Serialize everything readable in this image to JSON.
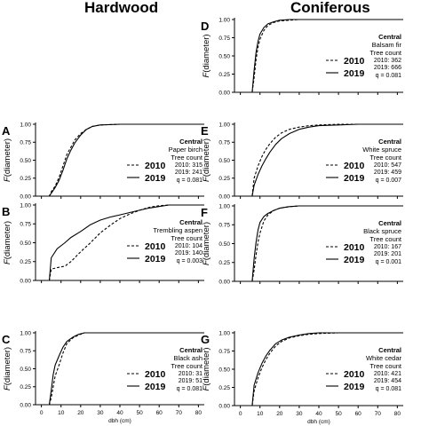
{
  "headers": {
    "left": "Hardwood",
    "right": "Coniferous"
  },
  "axis": {
    "ylabel_html": [
      "F",
      "(diameter)"
    ],
    "yticks": [
      "0.00",
      "0.25",
      "0.50",
      "0.75",
      "1.00"
    ],
    "xticks": [
      "0",
      "10",
      "20",
      "30",
      "40",
      "50",
      "60",
      "70",
      "80"
    ],
    "xlabel": "dbh (cm)",
    "xlim": [
      -3,
      83
    ],
    "ylim": [
      0,
      1
    ]
  },
  "legend": {
    "series_a": "2010",
    "series_b": "2019",
    "count_title": "Tree count"
  },
  "chart_data": [
    {
      "panel": "A",
      "type": "line",
      "region": "Central",
      "species": "Paper birch",
      "counts": [
        "2010: 315",
        "2019: 241"
      ],
      "q": "q = 0.081",
      "series": [
        {
          "name": "2010",
          "dash": true,
          "x": [
            -3,
            2,
            4,
            5,
            7,
            9,
            11,
            13,
            15,
            17,
            20,
            23,
            26,
            30,
            40,
            65,
            83
          ],
          "y": [
            0,
            0,
            0,
            0.06,
            0.14,
            0.26,
            0.42,
            0.58,
            0.68,
            0.78,
            0.87,
            0.93,
            0.97,
            0.99,
            1,
            1,
            1
          ]
        },
        {
          "name": "2019",
          "dash": false,
          "x": [
            -3,
            2,
            4,
            5,
            7,
            9,
            11,
            13,
            15,
            17,
            20,
            23,
            26,
            30,
            40,
            65,
            83
          ],
          "y": [
            0,
            0,
            0,
            0.04,
            0.12,
            0.22,
            0.36,
            0.52,
            0.64,
            0.74,
            0.85,
            0.93,
            0.97,
            0.99,
            1,
            1,
            1
          ]
        }
      ]
    },
    {
      "panel": "B",
      "type": "line",
      "region": "Central",
      "species": "Trembling aspen",
      "counts": [
        "2010: 104",
        "2019: 140"
      ],
      "q": "q = 0.003",
      "series": [
        {
          "name": "2010",
          "dash": true,
          "x": [
            -3,
            3,
            4,
            5,
            8,
            12,
            15,
            20,
            25,
            30,
            35,
            40,
            45,
            50,
            55,
            60,
            65,
            70,
            83
          ],
          "y": [
            0,
            0,
            0,
            0.15,
            0.17,
            0.19,
            0.25,
            0.38,
            0.5,
            0.63,
            0.73,
            0.82,
            0.88,
            0.93,
            0.97,
            0.99,
            1,
            1,
            1
          ]
        },
        {
          "name": "2019",
          "dash": false,
          "x": [
            -3,
            3,
            4,
            5,
            8,
            12,
            15,
            20,
            25,
            30,
            35,
            40,
            45,
            50,
            55,
            60,
            65,
            70,
            83
          ],
          "y": [
            0,
            0,
            0,
            0.3,
            0.42,
            0.5,
            0.57,
            0.65,
            0.74,
            0.8,
            0.84,
            0.87,
            0.9,
            0.93,
            0.96,
            0.98,
            1,
            1,
            1
          ]
        }
      ]
    },
    {
      "panel": "C",
      "type": "line",
      "region": "Central",
      "species": "Black ash",
      "counts": [
        "2010: 31",
        "2019: 51"
      ],
      "q": "q = 0.081",
      "series": [
        {
          "name": "2010",
          "dash": true,
          "x": [
            -3,
            3,
            4,
            5,
            6,
            7,
            9,
            11,
            13,
            16,
            19,
            22,
            83
          ],
          "y": [
            0,
            0,
            0,
            0.1,
            0.25,
            0.4,
            0.55,
            0.72,
            0.85,
            0.93,
            0.97,
            1,
            1
          ]
        },
        {
          "name": "2019",
          "dash": false,
          "x": [
            -3,
            3,
            4,
            5,
            6,
            7,
            9,
            11,
            13,
            16,
            19,
            22,
            83
          ],
          "y": [
            0,
            0,
            0,
            0.2,
            0.42,
            0.55,
            0.68,
            0.8,
            0.88,
            0.94,
            0.98,
            1,
            1
          ]
        }
      ]
    },
    {
      "panel": "D",
      "type": "line",
      "region": "Central",
      "species": "Balsam fir",
      "counts": [
        "2010: 362",
        "2019: 666"
      ],
      "q": "q = 0.081",
      "series": [
        {
          "name": "2010",
          "dash": true,
          "x": [
            -3,
            5,
            6,
            7,
            8,
            9,
            10,
            12,
            14,
            17,
            20,
            25,
            30,
            40,
            83
          ],
          "y": [
            0,
            0,
            0,
            0.2,
            0.45,
            0.62,
            0.73,
            0.85,
            0.92,
            0.96,
            0.98,
            0.99,
            1,
            1,
            1
          ]
        },
        {
          "name": "2019",
          "dash": false,
          "x": [
            -3,
            5,
            6,
            7,
            8,
            9,
            10,
            12,
            14,
            17,
            20,
            25,
            30,
            40,
            83
          ],
          "y": [
            0,
            0,
            0,
            0.3,
            0.55,
            0.7,
            0.8,
            0.89,
            0.94,
            0.97,
            0.99,
            1,
            1,
            1,
            1
          ]
        }
      ]
    },
    {
      "panel": "E",
      "type": "line",
      "region": "Central",
      "species": "White spruce",
      "counts": [
        "2010: 547",
        "2019: 459"
      ],
      "q": "q = 0.007",
      "series": [
        {
          "name": "2010",
          "dash": true,
          "x": [
            -3,
            5,
            6,
            7,
            9,
            11,
            13,
            15,
            18,
            21,
            25,
            30,
            35,
            40,
            50,
            60,
            83
          ],
          "y": [
            0,
            0,
            0,
            0.25,
            0.42,
            0.55,
            0.65,
            0.73,
            0.82,
            0.88,
            0.93,
            0.96,
            0.98,
            0.99,
            1,
            1,
            1
          ]
        },
        {
          "name": "2019",
          "dash": false,
          "x": [
            -3,
            5,
            6,
            7,
            9,
            11,
            13,
            15,
            18,
            21,
            25,
            30,
            35,
            40,
            50,
            60,
            83
          ],
          "y": [
            0,
            0,
            0,
            0.15,
            0.3,
            0.42,
            0.52,
            0.61,
            0.72,
            0.8,
            0.87,
            0.93,
            0.96,
            0.98,
            0.99,
            1,
            1
          ]
        }
      ]
    },
    {
      "panel": "F",
      "type": "line",
      "region": "Central",
      "species": "Black spruce",
      "counts": [
        "2010: 167",
        "2019: 201"
      ],
      "q": "q = 0.001",
      "series": [
        {
          "name": "2010",
          "dash": true,
          "x": [
            -3,
            5,
            6,
            7,
            8,
            9,
            10,
            12,
            14,
            17,
            20,
            25,
            30,
            40,
            83
          ],
          "y": [
            0,
            0,
            0,
            0.15,
            0.35,
            0.52,
            0.64,
            0.8,
            0.88,
            0.94,
            0.97,
            0.99,
            1,
            1,
            1
          ]
        },
        {
          "name": "2019",
          "dash": false,
          "x": [
            -3,
            5,
            6,
            7,
            8,
            9,
            10,
            12,
            14,
            17,
            20,
            25,
            30,
            40,
            83
          ],
          "y": [
            0,
            0,
            0,
            0.3,
            0.52,
            0.68,
            0.78,
            0.86,
            0.9,
            0.94,
            0.97,
            0.99,
            1,
            1,
            1
          ]
        }
      ]
    },
    {
      "panel": "G",
      "type": "line",
      "region": "Central",
      "species": "White cedar",
      "counts": [
        "2010: 421",
        "2019: 454"
      ],
      "q": "q = 0.081",
      "series": [
        {
          "name": "2010",
          "dash": true,
          "x": [
            -3,
            5,
            6,
            7,
            9,
            11,
            13,
            15,
            18,
            21,
            25,
            30,
            35,
            40,
            50,
            83
          ],
          "y": [
            0,
            0,
            0,
            0.2,
            0.38,
            0.52,
            0.63,
            0.72,
            0.82,
            0.88,
            0.93,
            0.96,
            0.98,
            0.99,
            1,
            1
          ]
        },
        {
          "name": "2019",
          "dash": false,
          "x": [
            -3,
            5,
            6,
            7,
            9,
            11,
            13,
            15,
            18,
            21,
            25,
            30,
            35,
            40,
            50,
            83
          ],
          "y": [
            0,
            0,
            0,
            0.28,
            0.45,
            0.58,
            0.68,
            0.76,
            0.85,
            0.9,
            0.94,
            0.97,
            0.99,
            1,
            1,
            1
          ]
        }
      ]
    }
  ]
}
